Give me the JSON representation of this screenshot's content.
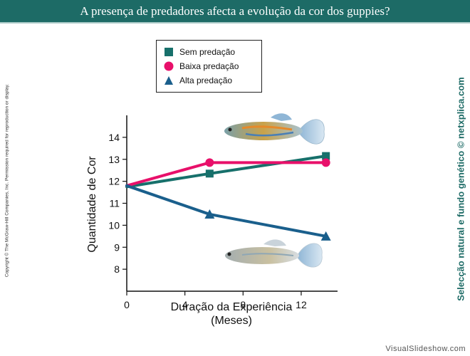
{
  "header": {
    "title": "A presença de predadores afecta a evolução da cor dos guppies?"
  },
  "copyright": "Copyright © The McGraw-Hill Companies, Inc. Permission required for reproduction or display.",
  "side_label": "Selecção natural e fundo genético © netxplica.com",
  "footer": "VisualSlideshow.com",
  "colors": {
    "sem": "#17706b",
    "baixa": "#e8106a",
    "alta": "#1a5f8c",
    "header": "#1d6b66"
  },
  "chart_data": {
    "type": "line",
    "xlabel": "Duração da Experiência",
    "xlabel2": "(Meses)",
    "ylabel": "Quantidade de Cor",
    "xlim": [
      0,
      14.5
    ],
    "ylim": [
      7,
      15
    ],
    "xticks": [
      0,
      4,
      8,
      12
    ],
    "yticks": [
      8,
      9,
      10,
      11,
      12,
      13,
      14
    ],
    "legend_position": "top-left",
    "grid": false,
    "series": [
      {
        "name": "Sem predação",
        "marker": "square",
        "color": "#17706b",
        "x": [
          0,
          5.7,
          13.7
        ],
        "y": [
          11.75,
          12.35,
          13.15
        ]
      },
      {
        "name": "Baixa predação",
        "marker": "circle",
        "color": "#e8106a",
        "x": [
          0,
          5.7,
          13.7
        ],
        "y": [
          11.8,
          12.85,
          12.85
        ]
      },
      {
        "name": "Alta predação",
        "marker": "triangle",
        "color": "#1a5f8c",
        "x": [
          0,
          5.7,
          13.7
        ],
        "y": [
          11.8,
          10.5,
          9.5
        ]
      }
    ]
  }
}
